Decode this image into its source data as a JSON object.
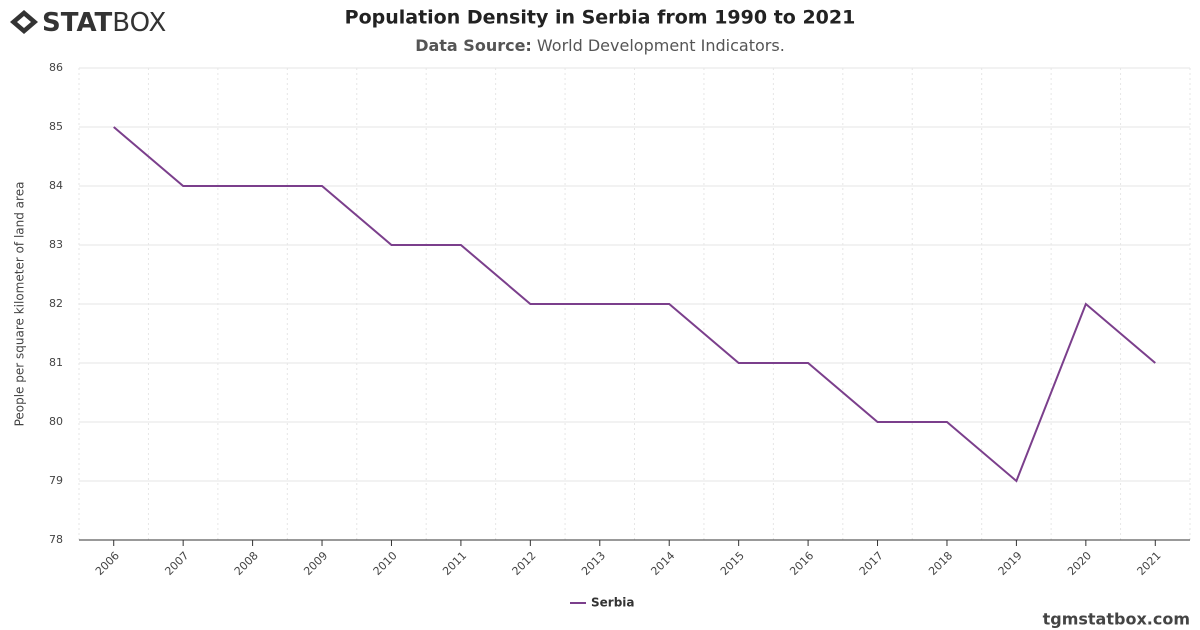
{
  "logo": {
    "strong": "STAT",
    "light": "BOX"
  },
  "footer": "tgmstatbox.com",
  "chart_data": {
    "type": "line",
    "title": "Population Density in Serbia from 1990 to 2021",
    "subtitle": {
      "label": "Data Source:",
      "text": "World Development Indicators."
    },
    "y_label": "People per square kilometer of land area",
    "categories": [
      "2006",
      "2007",
      "2008",
      "2009",
      "2010",
      "2011",
      "2012",
      "2013",
      "2014",
      "2015",
      "2016",
      "2017",
      "2018",
      "2019",
      "2020",
      "2021"
    ],
    "series": [
      {
        "name": "Serbia",
        "color": "#7b3f8c",
        "values": [
          85,
          84,
          84,
          84,
          83,
          83,
          82,
          82,
          82,
          81,
          81,
          80,
          80,
          79,
          82,
          81
        ]
      }
    ],
    "ylim": [
      78,
      86
    ],
    "yticks": [
      78,
      79,
      80,
      81,
      82,
      83,
      84,
      85,
      86
    ],
    "grid": true,
    "legend": "bottom"
  }
}
